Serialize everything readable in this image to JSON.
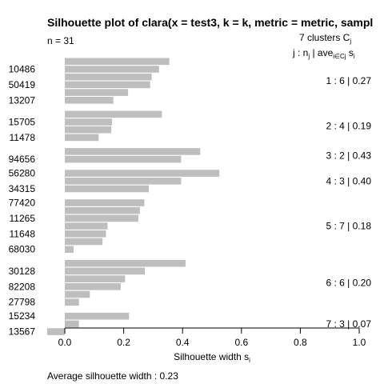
{
  "chart_data": {
    "type": "bar",
    "orientation": "horizontal",
    "title": "Silhouette plot of clara(x = test3, k = k, metric = metric, sampl",
    "n_label": "n = 31",
    "clusters_header": "7  clusters  C",
    "clusters_header_sub": "j",
    "summary_header": {
      "j": "j :  n",
      "j_sub": "j",
      "sep": " | ave",
      "ave_sub": "i∈Cj",
      "s": "  s",
      "s_sub": "i"
    },
    "xlabel": "Silhouette width s",
    "xlabel_sub": "i",
    "xlim": [
      0.0,
      1.0
    ],
    "xticks": [
      "0.0",
      "0.2",
      "0.4",
      "0.6",
      "0.8",
      "1.0"
    ],
    "bar_color": "#bebebe",
    "average_label": "Average silhouette width :  0.23",
    "clusters": [
      {
        "summary": "1 :  6  |  0.27",
        "widths": [
          0.355,
          0.32,
          0.295,
          0.29,
          0.215,
          0.165
        ],
        "labels": [
          "",
          "10486",
          "",
          "50419",
          "",
          "13207"
        ]
      },
      {
        "summary": "2 :  4  |  0.19",
        "widths": [
          0.33,
          0.16,
          0.158,
          0.115
        ],
        "labels": [
          "",
          "15705",
          "",
          "11478"
        ]
      },
      {
        "summary": "3 :  2  |  0.43",
        "widths": [
          0.46,
          0.395
        ],
        "labels": [
          "",
          "94656"
        ]
      },
      {
        "summary": "4 :  3  |  0.40",
        "widths": [
          0.525,
          0.395,
          0.285
        ],
        "labels": [
          "56280",
          "",
          "34315"
        ]
      },
      {
        "summary": "5 :  7  |  0.18",
        "widths": [
          0.27,
          0.255,
          0.25,
          0.145,
          0.14,
          0.128,
          0.03
        ],
        "labels": [
          "77420",
          "",
          "11265",
          "",
          "11648",
          "",
          "68030"
        ]
      },
      {
        "summary": "6 :  6  |  0.20",
        "widths": [
          0.41,
          0.272,
          0.205,
          0.19,
          0.085,
          0.048
        ],
        "labels": [
          "",
          "30128",
          "",
          "82208",
          "",
          "27798"
        ]
      },
      {
        "summary": "7 :  3  |  0.07",
        "widths": [
          0.218,
          0.048,
          -0.06
        ],
        "labels": [
          "15234",
          "",
          "13567"
        ]
      }
    ]
  }
}
